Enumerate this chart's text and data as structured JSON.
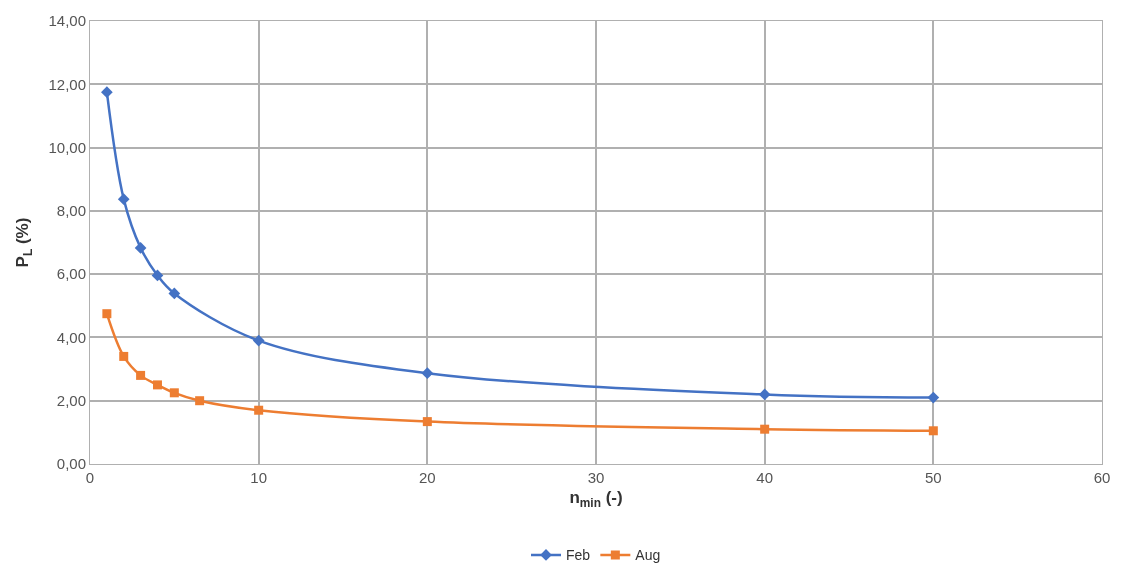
{
  "chart_data": {
    "type": "line",
    "xlabel": "n$_{min}$ (-)",
    "ylabel": "P$_{L}$ (%)",
    "xlim": [
      0,
      60
    ],
    "xticks": [
      0,
      10,
      20,
      30,
      40,
      50,
      60
    ],
    "ylim": [
      0,
      14
    ],
    "yticks": [
      {
        "value": 0,
        "label": "0,00"
      },
      {
        "value": 2,
        "label": "2,00"
      },
      {
        "value": 4,
        "label": "4,00"
      },
      {
        "value": 6,
        "label": "6,00"
      },
      {
        "value": 8,
        "label": "8,00"
      },
      {
        "value": 10,
        "label": "10,00"
      },
      {
        "value": 12,
        "label": "12,00"
      },
      {
        "value": 14,
        "label": "14,00"
      }
    ],
    "grid": true,
    "legend": "bottom",
    "series": [
      {
        "name": "Feb",
        "color": "#4472c4",
        "marker": "diamond",
        "x": [
          1,
          2,
          3,
          4,
          5,
          10,
          20,
          40,
          50
        ],
        "values": [
          11.75,
          8.37,
          6.83,
          5.96,
          5.39,
          3.9,
          2.87,
          2.2,
          2.1
        ]
      },
      {
        "name": "Aug",
        "color": "#ed7d31",
        "marker": "square",
        "x": [
          1,
          2,
          3,
          4,
          5,
          6.5,
          10,
          20,
          40,
          50
        ],
        "values": [
          4.75,
          3.4,
          2.8,
          2.5,
          2.25,
          2.0,
          1.7,
          1.34,
          1.1,
          1.05
        ]
      }
    ]
  }
}
